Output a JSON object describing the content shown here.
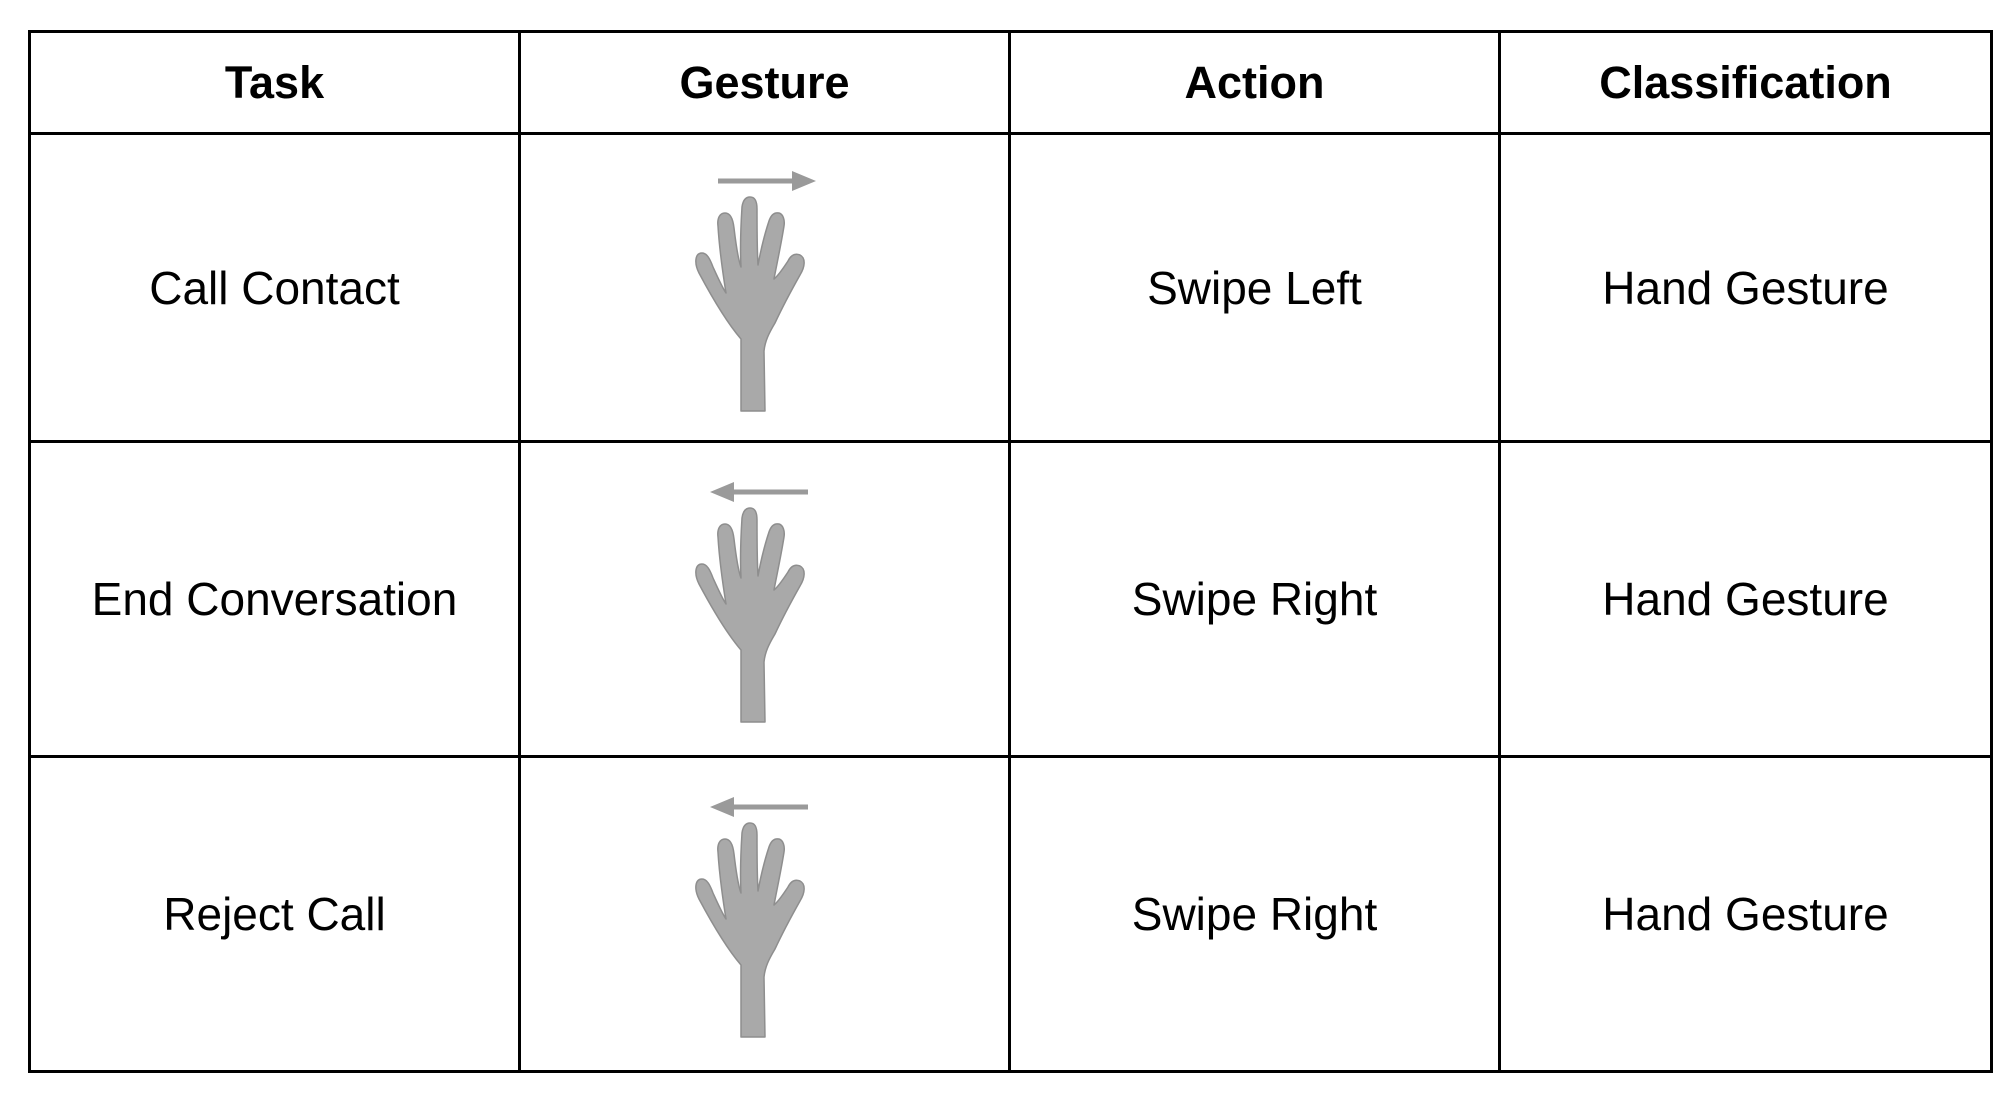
{
  "table": {
    "headers": {
      "task": "Task",
      "gesture": "Gesture",
      "action": "Action",
      "classification": "Classification"
    },
    "rows": [
      {
        "task": "Call Contact",
        "gesture_icon": "hand-swipe-right-icon",
        "arrow_direction": "right",
        "action": "Swipe Left",
        "classification": "Hand Gesture"
      },
      {
        "task": "End Conversation",
        "gesture_icon": "hand-swipe-left-icon",
        "arrow_direction": "left",
        "action": "Swipe Right",
        "classification": "Hand Gesture"
      },
      {
        "task": "Reject Call",
        "gesture_icon": "hand-swipe-left-icon",
        "arrow_direction": "left",
        "action": "Swipe Right",
        "classification": "Hand Gesture"
      }
    ]
  },
  "colors": {
    "border": "#000000",
    "hand": "#a9a9a9",
    "arrow": "#9a9a9a"
  }
}
